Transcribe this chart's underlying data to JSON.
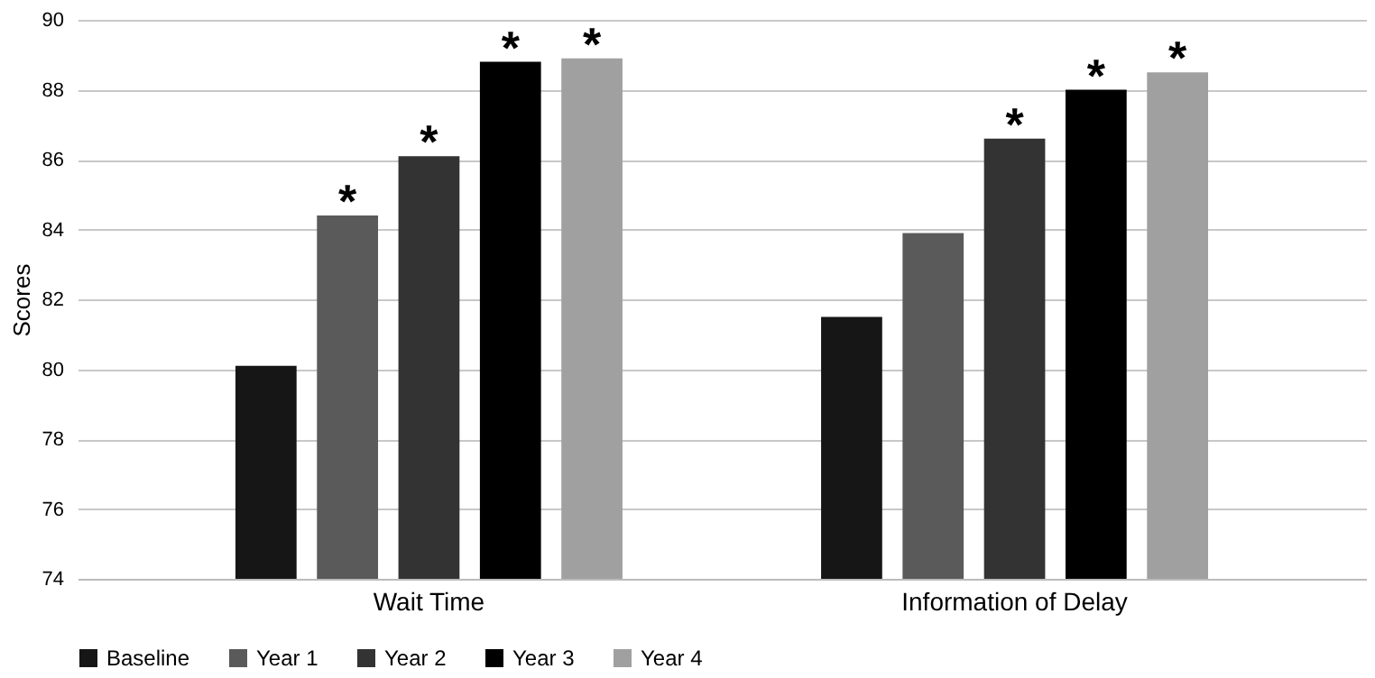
{
  "chart_data": {
    "type": "bar",
    "ylabel": "Scores",
    "categories": [
      "Wait Time",
      "Information of Delay"
    ],
    "series": [
      {
        "name": "Baseline",
        "color": "#161616",
        "values": [
          80.1,
          81.5
        ],
        "value_labels": [
          null,
          null
        ]
      },
      {
        "name": "Year 1",
        "color": "#5a5a5a",
        "values": [
          84.4,
          83.9
        ],
        "value_labels": [
          "*",
          null
        ]
      },
      {
        "name": "Year 2",
        "color": "#333333",
        "values": [
          86.1,
          86.6
        ],
        "value_labels": [
          "*",
          "*"
        ]
      },
      {
        "name": "Year 3",
        "color": "#000000",
        "values": [
          88.8,
          88.0
        ],
        "value_labels": [
          "*",
          "*"
        ]
      },
      {
        "name": "Year 4",
        "color": "#a0a0a0",
        "values": [
          88.9,
          88.5
        ],
        "value_labels": [
          "*",
          "*"
        ]
      }
    ],
    "ylim": [
      74,
      90
    ],
    "yticks": [
      74,
      76,
      78,
      80,
      82,
      84,
      86,
      88,
      90
    ],
    "grid": "y",
    "legend": "bottom"
  }
}
